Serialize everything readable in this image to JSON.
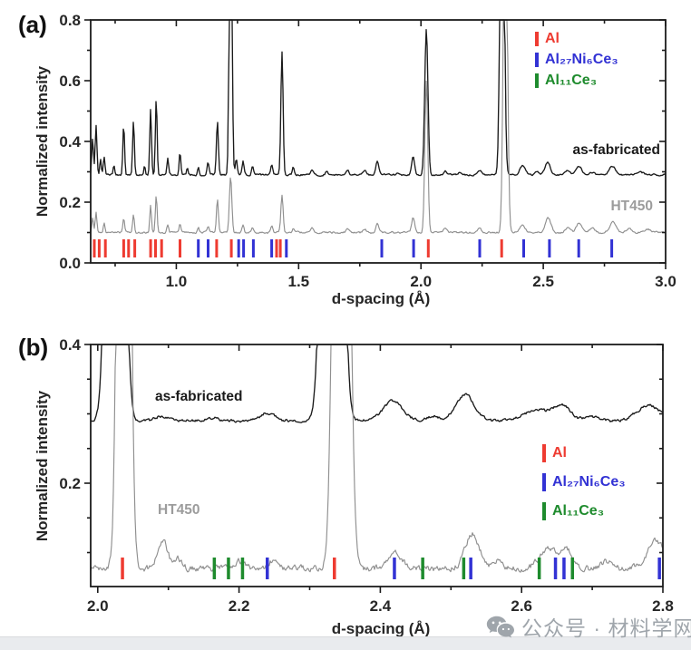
{
  "figure": {
    "panel_a_label": "(a)",
    "panel_b_label": "(b)"
  },
  "watermark": {
    "icon": "wechat-icon",
    "text": "公众号 · 材料学网",
    "color": "#9aa1a7"
  },
  "chart_data": [
    {
      "panel": "a",
      "type": "line",
      "xlabel": "d-spacing (Å)",
      "ylabel": "Normalized intensity",
      "xlim": [
        0.65,
        3.0
      ],
      "ylim": [
        0.0,
        0.8
      ],
      "grid": false,
      "legend_position": "top-right-inside",
      "x_major_ticks": [
        1.0,
        1.5,
        2.0,
        2.5,
        3.0
      ],
      "x_minor_ticks": [
        0.75,
        1.25,
        1.75,
        2.25,
        2.75
      ],
      "y_major_ticks": [
        0.0,
        0.2,
        0.4,
        0.6,
        0.8
      ],
      "y_minor_ticks": [
        0.1,
        0.3,
        0.5,
        0.7
      ],
      "annotations": [
        {
          "text": "as-fabricated",
          "color": "#1b1b1b"
        },
        {
          "text": "HT450",
          "color": "#9c9c9c"
        }
      ],
      "legend": [
        {
          "label": "Al",
          "color": "#ee3b31"
        },
        {
          "label": "Al₂₇Ni₆Ce₃",
          "color": "#3232d4"
        },
        {
          "label": "Al₁₁Ce₃",
          "color": "#1e8b2d"
        }
      ],
      "series": [
        {
          "name": "as-fabricated",
          "color": "#1b1b1b",
          "baseline": 0.29,
          "noise": 0.0028,
          "peaks": [
            [
              0.658,
              0.41,
              0.0035
            ],
            [
              0.672,
              0.455,
              0.0035
            ],
            [
              0.69,
              0.34,
              0.003
            ],
            [
              0.705,
              0.35,
              0.0035
            ],
            [
              0.745,
              0.325,
              0.003
            ],
            [
              0.785,
              0.455,
              0.0035
            ],
            [
              0.825,
              0.465,
              0.0035
            ],
            [
              0.87,
              0.32,
              0.003
            ],
            [
              0.895,
              0.505,
              0.0035
            ],
            [
              0.918,
              0.545,
              0.0035
            ],
            [
              0.965,
              0.345,
              0.0035
            ],
            [
              1.015,
              0.365,
              0.0035
            ],
            [
              1.045,
              0.315,
              0.003
            ],
            [
              1.09,
              0.315,
              0.0035
            ],
            [
              1.13,
              0.33,
              0.004
            ],
            [
              1.168,
              0.465,
              0.004
            ],
            [
              1.222,
              1.6,
              0.005
            ],
            [
              1.245,
              0.34,
              0.004
            ],
            [
              1.273,
              0.335,
              0.004
            ],
            [
              1.312,
              0.32,
              0.004
            ],
            [
              1.39,
              0.325,
              0.004
            ],
            [
              1.432,
              0.695,
              0.0045
            ],
            [
              1.478,
              0.315,
              0.004
            ],
            [
              1.555,
              0.308,
              0.005
            ],
            [
              1.615,
              0.303,
              0.005
            ],
            [
              1.7,
              0.306,
              0.006
            ],
            [
              1.77,
              0.305,
              0.006
            ],
            [
              1.822,
              0.335,
              0.006
            ],
            [
              1.905,
              0.298,
              0.005
            ],
            [
              1.968,
              0.35,
              0.006
            ],
            [
              2.022,
              0.77,
              0.0065
            ],
            [
              2.1,
              0.302,
              0.006
            ],
            [
              2.16,
              0.298,
              0.006
            ],
            [
              2.24,
              0.303,
              0.008
            ],
            [
              2.332,
              1.8,
              0.0075
            ],
            [
              2.415,
              0.322,
              0.011
            ],
            [
              2.475,
              0.298,
              0.008
            ],
            [
              2.518,
              0.331,
              0.011
            ],
            [
              2.6,
              0.302,
              0.01
            ],
            [
              2.645,
              0.32,
              0.012
            ],
            [
              2.7,
              0.298,
              0.01
            ],
            [
              2.782,
              0.318,
              0.013
            ],
            [
              2.9,
              0.298,
              0.012
            ]
          ]
        },
        {
          "name": "HT450",
          "color": "#8f8f8f",
          "baseline": 0.1,
          "noise": 0.0032,
          "peaks": [
            [
              0.658,
              0.15,
              0.0035
            ],
            [
              0.672,
              0.165,
              0.0035
            ],
            [
              0.705,
              0.13,
              0.0035
            ],
            [
              0.785,
              0.145,
              0.0035
            ],
            [
              0.825,
              0.16,
              0.0035
            ],
            [
              0.895,
              0.19,
              0.0035
            ],
            [
              0.918,
              0.225,
              0.0035
            ],
            [
              0.965,
              0.125,
              0.0035
            ],
            [
              1.015,
              0.133,
              0.0035
            ],
            [
              1.09,
              0.115,
              0.0035
            ],
            [
              1.13,
              0.122,
              0.004
            ],
            [
              1.168,
              0.21,
              0.004
            ],
            [
              1.222,
              0.285,
              0.005
            ],
            [
              1.273,
              0.125,
              0.004
            ],
            [
              1.312,
              0.117,
              0.004
            ],
            [
              1.39,
              0.12,
              0.004
            ],
            [
              1.432,
              0.225,
              0.0045
            ],
            [
              1.478,
              0.115,
              0.004
            ],
            [
              1.555,
              0.112,
              0.005
            ],
            [
              1.7,
              0.112,
              0.006
            ],
            [
              1.77,
              0.112,
              0.006
            ],
            [
              1.822,
              0.128,
              0.006
            ],
            [
              1.968,
              0.15,
              0.006
            ],
            [
              2.022,
              0.6,
              0.006
            ],
            [
              2.1,
              0.115,
              0.006
            ],
            [
              2.24,
              0.112,
              0.008
            ],
            [
              2.345,
              1.5,
              0.0075
            ],
            [
              2.415,
              0.122,
              0.011
            ],
            [
              2.52,
              0.148,
              0.011
            ],
            [
              2.6,
              0.115,
              0.01
            ],
            [
              2.648,
              0.132,
              0.012
            ],
            [
              2.7,
              0.115,
              0.01
            ],
            [
              2.785,
              0.135,
              0.013
            ],
            [
              2.85,
              0.112,
              0.01
            ],
            [
              2.93,
              0.11,
              0.012
            ]
          ]
        }
      ],
      "phase_markers": [
        {
          "phase": "Al",
          "color": "#ee3b31",
          "positions": [
            0.665,
            0.685,
            0.71,
            0.785,
            0.805,
            0.83,
            0.895,
            0.915,
            0.94,
            1.015,
            1.165,
            1.225,
            1.41,
            1.425,
            2.03,
            2.33
          ]
        },
        {
          "phase": "Al₂₇Ni₆Ce₃",
          "color": "#3232d4",
          "positions": [
            1.09,
            1.13,
            1.255,
            1.275,
            1.315,
            1.39,
            1.45,
            1.84,
            1.97,
            2.24,
            2.42,
            2.525,
            2.645,
            2.78
          ]
        },
        {
          "phase": "Al₁₁Ce₃",
          "color": "#1e8b2d",
          "positions": []
        }
      ]
    },
    {
      "panel": "b",
      "type": "line",
      "xlabel": "d-spacing (Å)",
      "ylabel": "Normalized intensity",
      "xlim": [
        1.99,
        2.8
      ],
      "ylim": [
        0.051,
        0.4
      ],
      "grid": false,
      "legend_position": "right-inside",
      "x_major_ticks": [
        2.0,
        2.2,
        2.4,
        2.6,
        2.8
      ],
      "x_minor_ticks": [
        2.1,
        2.3,
        2.5,
        2.7
      ],
      "y_major_ticks": [
        0.2,
        0.4
      ],
      "y_minor_ticks": [
        0.1,
        0.15,
        0.25,
        0.3,
        0.35
      ],
      "annotations": [
        {
          "text": "as-fabricated",
          "color": "#1b1b1b"
        },
        {
          "text": "HT450",
          "color": "#9c9c9c"
        }
      ],
      "legend": [
        {
          "label": "Al",
          "color": "#ee3b31"
        },
        {
          "label": "Al₂₇Ni₆Ce₃",
          "color": "#3232d4"
        },
        {
          "label": "Al₁₁Ce₃",
          "color": "#1e8b2d"
        }
      ],
      "series": [
        {
          "name": "as-fabricated",
          "color": "#1b1b1b",
          "baseline": 0.29,
          "noise": 0.002,
          "peaks": [
            [
              2.025,
              2.5,
              0.008
            ],
            [
              2.09,
              0.297,
              0.008
            ],
            [
              2.165,
              0.294,
              0.008
            ],
            [
              2.24,
              0.301,
              0.01
            ],
            [
              2.332,
              2.5,
              0.009
            ],
            [
              2.418,
              0.318,
              0.014
            ],
            [
              2.475,
              0.297,
              0.008
            ],
            [
              2.52,
              0.328,
              0.013
            ],
            [
              2.62,
              0.306,
              0.016
            ],
            [
              2.657,
              0.313,
              0.012
            ],
            [
              2.7,
              0.296,
              0.01
            ],
            [
              2.78,
              0.313,
              0.016
            ]
          ]
        },
        {
          "name": "HT450",
          "color": "#8f8f8f",
          "baseline": 0.077,
          "noise": 0.0042,
          "peaks": [
            [
              2.037,
              2.5,
              0.006
            ],
            [
              2.092,
              0.118,
              0.007
            ],
            [
              2.115,
              0.09,
              0.005
            ],
            [
              2.2,
              0.087,
              0.008
            ],
            [
              2.247,
              0.088,
              0.006
            ],
            [
              2.345,
              2.5,
              0.0075
            ],
            [
              2.42,
              0.101,
              0.01
            ],
            [
              2.53,
              0.127,
              0.01
            ],
            [
              2.565,
              0.088,
              0.006
            ],
            [
              2.64,
              0.106,
              0.013
            ],
            [
              2.665,
              0.1,
              0.008
            ],
            [
              2.72,
              0.086,
              0.008
            ],
            [
              2.79,
              0.117,
              0.012
            ]
          ]
        }
      ],
      "phase_markers": [
        {
          "phase": "Al",
          "color": "#ee3b31",
          "positions": [
            2.035,
            2.335
          ]
        },
        {
          "phase": "Al₂₇Ni₆Ce₃",
          "color": "#3232d4",
          "positions": [
            2.24,
            2.42,
            2.528,
            2.648,
            2.66,
            2.795
          ]
        },
        {
          "phase": "Al₁₁Ce₃",
          "color": "#1e8b2d",
          "positions": [
            2.165,
            2.185,
            2.205,
            2.46,
            2.518,
            2.625,
            2.672
          ]
        }
      ]
    }
  ]
}
